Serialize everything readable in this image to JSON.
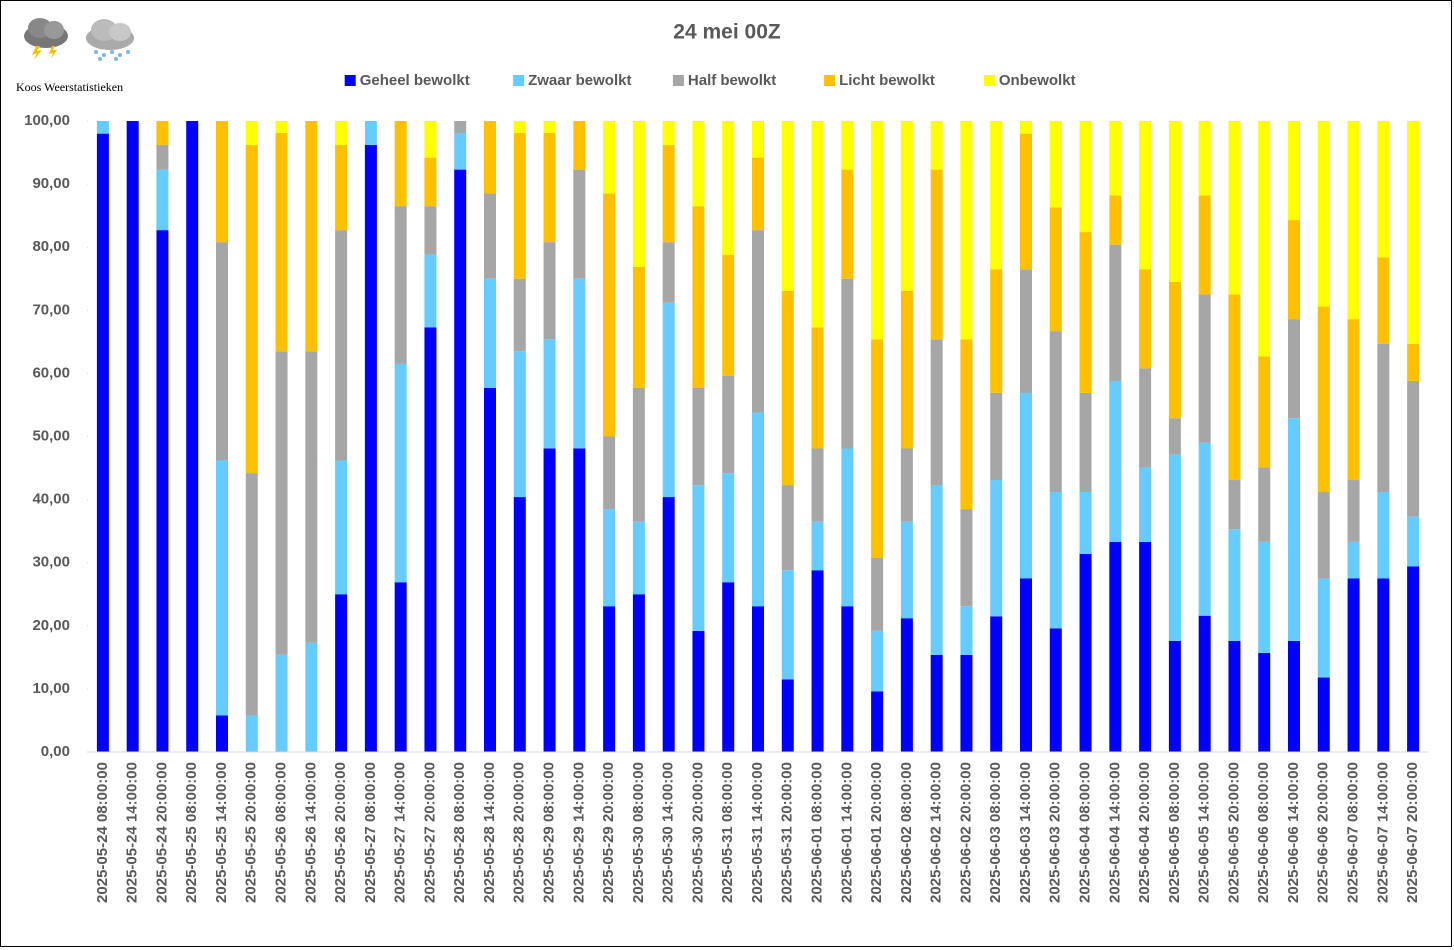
{
  "chart_data": {
    "type": "stacked_bar",
    "title": "24 mei 00Z",
    "subtitle": "Koos Weerstatistieken",
    "categories": [
      "2025-05-24 08:00:00",
      "2025-05-24 14:00:00",
      "2025-05-24 20:00:00",
      "2025-05-25 08:00:00",
      "2025-05-25 14:00:00",
      "2025-05-25 20:00:00",
      "2025-05-26 08:00:00",
      "2025-05-26 14:00:00",
      "2025-05-26 20:00:00",
      "2025-05-27 08:00:00",
      "2025-05-27 14:00:00",
      "2025-05-27 20:00:00",
      "2025-05-28 08:00:00",
      "2025-05-28 14:00:00",
      "2025-05-28 20:00:00",
      "2025-05-29 08:00:00",
      "2025-05-29 14:00:00",
      "2025-05-29 20:00:00",
      "2025-05-30 08:00:00",
      "2025-05-30 14:00:00",
      "2025-05-30 20:00:00",
      "2025-05-31 08:00:00",
      "2025-05-31 14:00:00",
      "2025-05-31 20:00:00",
      "2025-06-01 08:00:00",
      "2025-06-01 14:00:00",
      "2025-06-01 20:00:00",
      "2025-06-02 08:00:00",
      "2025-06-02 14:00:00",
      "2025-06-02 20:00:00",
      "2025-06-03 08:00:00",
      "2025-06-03 14:00:00",
      "2025-06-03 20:00:00",
      "2025-06-04 08:00:00",
      "2025-06-04 14:00:00",
      "2025-06-04 20:00:00",
      "2025-06-05 08:00:00",
      "2025-06-05 14:00:00",
      "2025-06-05 20:00:00",
      "2025-06-06 08:00:00",
      "2025-06-06 14:00:00",
      "2025-06-06 20:00:00",
      "2025-06-07 08:00:00",
      "2025-06-07 14:00:00",
      "2025-06-07 20:00:00"
    ],
    "series": [
      {
        "name": "Geheel bewolkt",
        "color": "#0000ff",
        "values": [
          98,
          100,
          82.7,
          100,
          5.8,
          0,
          0,
          0,
          25,
          96.2,
          26.9,
          67.3,
          92.3,
          57.7,
          40.4,
          48.1,
          48.1,
          23.1,
          25,
          40.4,
          19.2,
          26.9,
          23.1,
          11.5,
          28.8,
          23.1,
          9.6,
          21.2,
          15.4,
          15.4,
          21.5,
          27.5,
          19.6,
          31.4,
          33.3,
          33.3,
          17.6,
          21.6,
          17.6,
          15.7,
          17.6,
          11.8,
          27.5,
          27.5,
          29.4
        ]
      },
      {
        "name": "Zwaar bewolkt",
        "color": "#66ccff",
        "values": [
          2,
          0,
          9.6,
          0,
          40.4,
          5.8,
          15.4,
          17.3,
          21.2,
          3.8,
          34.6,
          11.5,
          5.8,
          17.3,
          23.1,
          17.3,
          26.9,
          15.4,
          11.5,
          30.8,
          23.1,
          17.3,
          30.7,
          17.3,
          7.7,
          25,
          9.6,
          15.3,
          26.9,
          7.7,
          21.6,
          29.4,
          21.6,
          9.8,
          25.5,
          11.8,
          29.5,
          27.4,
          17.7,
          17.6,
          35.3,
          15.7,
          5.8,
          13.7,
          7.9
        ]
      },
      {
        "name": "Half bewolkt",
        "color": "#a6a6a6",
        "values": [
          0,
          0,
          3.9,
          0,
          34.6,
          38.4,
          48.1,
          46.2,
          36.5,
          0,
          25,
          7.7,
          1.9,
          13.5,
          11.5,
          15.4,
          17.3,
          11.5,
          21.2,
          9.6,
          15.4,
          15.4,
          28.9,
          13.5,
          11.6,
          26.9,
          11.6,
          11.6,
          23.1,
          15.4,
          13.8,
          19.6,
          25.5,
          15.7,
          21.6,
          15.7,
          5.8,
          23.5,
          7.8,
          11.8,
          15.7,
          13.7,
          9.8,
          23.5,
          21.5
        ]
      },
      {
        "name": "Licht bewolkt",
        "color": "#ffc000",
        "values": [
          0,
          0,
          3.8,
          0,
          19.2,
          52,
          34.6,
          36.5,
          13.5,
          0,
          13.5,
          7.7,
          0,
          11.5,
          23.1,
          17.3,
          7.7,
          38.5,
          19.2,
          15.4,
          28.8,
          19.2,
          11.5,
          30.8,
          19.2,
          17.3,
          34.6,
          25,
          26.9,
          26.9,
          19.6,
          21.5,
          19.6,
          25.5,
          7.8,
          15.7,
          21.6,
          15.7,
          29.4,
          17.6,
          15.7,
          29.4,
          25.5,
          13.7,
          5.9
        ]
      },
      {
        "name": "Onbewolkt",
        "color": "#ffff00",
        "values": [
          0,
          0,
          0,
          0,
          0,
          3.8,
          1.9,
          0,
          3.8,
          0,
          0,
          5.8,
          0,
          0,
          1.9,
          1.9,
          0,
          11.5,
          23.1,
          3.8,
          13.5,
          21.2,
          5.8,
          26.9,
          32.7,
          7.7,
          34.6,
          26.9,
          7.7,
          34.6,
          23.5,
          2,
          13.7,
          17.6,
          11.8,
          23.5,
          25.5,
          11.8,
          27.5,
          37.3,
          15.7,
          29.4,
          31.4,
          21.6,
          35.3
        ]
      }
    ],
    "ylim": [
      0,
      100
    ],
    "yticks": [
      {
        "value": 0,
        "label": "0,00"
      },
      {
        "value": 10,
        "label": "10,00"
      },
      {
        "value": 20,
        "label": "20,00"
      },
      {
        "value": 30,
        "label": "30,00"
      },
      {
        "value": 40,
        "label": "40,00"
      },
      {
        "value": 50,
        "label": "50,00"
      },
      {
        "value": 60,
        "label": "60,00"
      },
      {
        "value": 70,
        "label": "70,00"
      },
      {
        "value": 80,
        "label": "80,00"
      },
      {
        "value": 90,
        "label": "90,00"
      },
      {
        "value": 100,
        "label": "100,00"
      }
    ],
    "grid": false,
    "legend": "top"
  }
}
